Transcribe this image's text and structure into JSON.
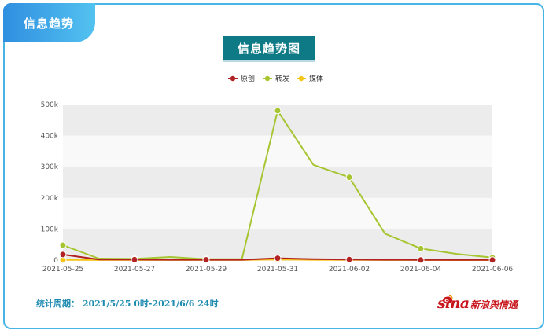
{
  "section_tab": "信息趋势",
  "chart_title": "信息趋势图",
  "footer": {
    "period": "统计周期：  2021/5/25 0时-2021/6/6 24时",
    "brand_word": "sina",
    "brand_cn": "新浪舆情通"
  },
  "chart_data": {
    "type": "line",
    "x": [
      "2021-05-25",
      "2021-05-26",
      "2021-05-27",
      "2021-05-28",
      "2021-05-29",
      "2021-05-30",
      "2021-05-31",
      "2021-06-01",
      "2021-06-02",
      "2021-06-03",
      "2021-06-04",
      "2021-06-05",
      "2021-06-06"
    ],
    "x_tick_labels": [
      "2021-05-25",
      "2021-05-27",
      "2021-05-29",
      "2021-05-31",
      "2021-06-02",
      "2021-06-04",
      "2021-06-06"
    ],
    "y_tick_labels": [
      "0",
      "100k",
      "200k",
      "300k",
      "400k",
      "500k"
    ],
    "ylim": [
      0,
      500000
    ],
    "grid": "horizontal bands",
    "legend_position": "top-center",
    "series": [
      {
        "name": "原创",
        "color": "#b22222",
        "values": [
          18000,
          2000,
          1500,
          1000,
          1000,
          1000,
          6000,
          3000,
          2000,
          1000,
          500,
          500,
          500
        ]
      },
      {
        "name": "转发",
        "color": "#a6c531",
        "values": [
          48000,
          5000,
          4000,
          10000,
          3000,
          3000,
          480000,
          306000,
          266000,
          85000,
          37000,
          20000,
          8000
        ]
      },
      {
        "name": "媒体",
        "color": "#f5c518",
        "values": [
          500,
          300,
          200,
          200,
          200,
          200,
          2000,
          800,
          500,
          300,
          200,
          100,
          100
        ]
      }
    ]
  }
}
